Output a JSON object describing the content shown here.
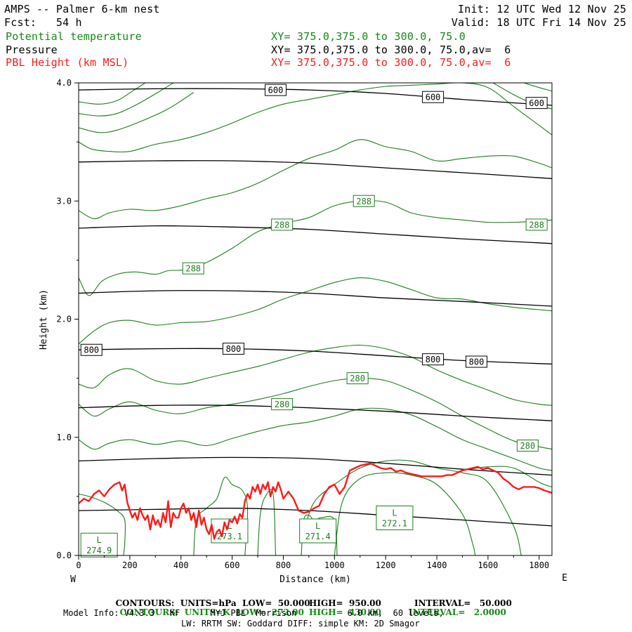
{
  "header": {
    "title": "AMPS -- Palmer 6-km nest",
    "forecast": "Fcst:   54 h",
    "init": "Init: 12 UTC Wed 12 Nov 25",
    "valid": "Valid: 18 UTC Fri 14 Nov 25",
    "fields": [
      {
        "label": "Potential temperature",
        "xsec": "XY= 375.0,375.0 to 300.0, 75.0",
        "color": "#138a13"
      },
      {
        "label": "Pressure",
        "xsec": "XY= 375.0,375.0 to 300.0, 75.0,av=  6",
        "color": "#000000"
      },
      {
        "label": "PBL Height (km MSL)",
        "xsec": "XY= 375.0,375.0 to 300.0, 75.0,av=  6",
        "color": "#ff1a1a"
      }
    ]
  },
  "chart_data": {
    "type": "line",
    "xlabel": "Distance (km)",
    "ylabel": "Height (km)",
    "xlim": [
      0,
      1850
    ],
    "ylim": [
      0,
      4
    ],
    "x_ticks": [
      0,
      200,
      400,
      600,
      800,
      1000,
      1200,
      1400,
      1600,
      1800
    ],
    "y_ticks": [
      0.0,
      1.0,
      2.0,
      3.0,
      4.0
    ],
    "y_tick_labels": [
      "0.0",
      "1.0",
      "2.0",
      "3.0",
      "4.0"
    ],
    "left_end_label": "W",
    "right_end_label": "E",
    "colors": {
      "pressure": "#000000",
      "theta": "#1e7d1e",
      "pbl": "#ff1a1a"
    },
    "pressure_contours": [
      {
        "x": [
          0,
          300,
          600,
          900,
          1200,
          1500,
          1850
        ],
        "y": [
          0.38,
          0.39,
          0.4,
          0.38,
          0.34,
          0.3,
          0.25
        ]
      },
      {
        "x": [
          0,
          300,
          600,
          900,
          1200,
          1500,
          1850
        ],
        "y": [
          0.8,
          0.82,
          0.83,
          0.82,
          0.78,
          0.73,
          0.68
        ]
      },
      {
        "x": [
          0,
          300,
          600,
          900,
          1200,
          1500,
          1850
        ],
        "y": [
          1.25,
          1.27,
          1.27,
          1.25,
          1.22,
          1.18,
          1.14
        ]
      },
      {
        "x": [
          0,
          300,
          600,
          900,
          1200,
          1500,
          1850
        ],
        "y": [
          1.74,
          1.75,
          1.75,
          1.73,
          1.69,
          1.65,
          1.62
        ]
      },
      {
        "x": [
          0,
          300,
          600,
          900,
          1200,
          1500,
          1850
        ],
        "y": [
          2.22,
          2.24,
          2.24,
          2.22,
          2.18,
          2.15,
          2.11
        ]
      },
      {
        "x": [
          0,
          300,
          600,
          900,
          1200,
          1500,
          1850
        ],
        "y": [
          2.77,
          2.79,
          2.78,
          2.76,
          2.72,
          2.68,
          2.64
        ]
      },
      {
        "x": [
          0,
          300,
          600,
          900,
          1200,
          1500,
          1850
        ],
        "y": [
          3.33,
          3.34,
          3.34,
          3.32,
          3.28,
          3.24,
          3.19
        ]
      },
      {
        "x": [
          0,
          300,
          600,
          900,
          1200,
          1500,
          1850
        ],
        "y": [
          3.94,
          3.95,
          3.95,
          3.94,
          3.91,
          3.86,
          3.81
        ]
      }
    ],
    "pressure_labels": [
      {
        "x": 770,
        "y": 3.94,
        "text": "600"
      },
      {
        "x": 1385,
        "y": 3.88,
        "text": "600"
      },
      {
        "x": 1790,
        "y": 3.83,
        "text": "600"
      },
      {
        "x": 50,
        "y": 1.74,
        "text": "800"
      },
      {
        "x": 605,
        "y": 1.75,
        "text": "800"
      },
      {
        "x": 1385,
        "y": 1.66,
        "text": "800"
      },
      {
        "x": 1555,
        "y": 1.64,
        "text": "800"
      }
    ],
    "theta_contours": [
      {
        "x": [
          0,
          60,
          120,
          200,
          300,
          400,
          500,
          600,
          700,
          800,
          900,
          1000,
          1100,
          1200,
          1300,
          1400,
          1500,
          1600,
          1700,
          1800,
          1850
        ],
        "y": [
          0.98,
          0.9,
          0.95,
          0.98,
          0.94,
          0.97,
          0.93,
          0.99,
          1.05,
          1.1,
          1.13,
          1.18,
          1.24,
          1.24,
          1.19,
          1.09,
          0.98,
          0.9,
          0.82,
          0.74,
          0.72
        ]
      },
      {
        "x": [
          0,
          60,
          120,
          200,
          300,
          400,
          500,
          600,
          700,
          800,
          900,
          1000,
          1100,
          1200,
          1300,
          1400,
          1500,
          1600,
          1700,
          1800,
          1850
        ],
        "y": [
          1.28,
          1.18,
          1.24,
          1.3,
          1.23,
          1.2,
          1.25,
          1.28,
          1.32,
          1.37,
          1.43,
          1.48,
          1.5,
          1.48,
          1.4,
          1.3,
          1.18,
          1.07,
          0.97,
          0.92,
          0.9
        ]
      },
      {
        "x": [
          0,
          60,
          120,
          200,
          300,
          400,
          500,
          600,
          700,
          800,
          900,
          1000,
          1100,
          1200,
          1300,
          1400,
          1500,
          1600,
          1700,
          1800,
          1850
        ],
        "y": [
          1.45,
          1.42,
          1.53,
          1.58,
          1.48,
          1.45,
          1.5,
          1.55,
          1.6,
          1.66,
          1.72,
          1.76,
          1.78,
          1.75,
          1.68,
          1.57,
          1.48,
          1.4,
          1.32,
          1.28,
          1.27
        ]
      },
      {
        "x": [
          0,
          60,
          120,
          200,
          300,
          400,
          500,
          600,
          700,
          800,
          900,
          1000,
          1100,
          1200,
          1300,
          1400,
          1500,
          1600,
          1700,
          1800,
          1850
        ],
        "y": [
          1.79,
          1.9,
          1.97,
          1.99,
          1.95,
          1.97,
          1.98,
          2.02,
          2.08,
          2.17,
          2.24,
          2.31,
          2.35,
          2.32,
          2.25,
          2.18,
          2.17,
          2.13,
          2.1,
          2.08,
          2.07
        ]
      },
      {
        "x": [
          0,
          40,
          90,
          150,
          220,
          300,
          350,
          420,
          500,
          600,
          700,
          800,
          900,
          1000,
          1100,
          1200,
          1300,
          1400,
          1500,
          1600,
          1700,
          1800,
          1850
        ],
        "y": [
          2.35,
          2.2,
          2.32,
          2.38,
          2.4,
          2.38,
          2.41,
          2.42,
          2.48,
          2.6,
          2.74,
          2.81,
          2.86,
          2.96,
          3.0,
          2.99,
          2.9,
          2.86,
          2.84,
          2.82,
          2.82,
          2.83,
          2.84
        ]
      },
      {
        "x": [
          0,
          60,
          120,
          200,
          300,
          400,
          500,
          600,
          700,
          800,
          900,
          1000,
          1100,
          1200,
          1300,
          1400,
          1500,
          1600,
          1700,
          1800,
          1850
        ],
        "y": [
          2.92,
          2.85,
          2.9,
          2.93,
          2.92,
          2.96,
          3.02,
          3.07,
          3.15,
          3.26,
          3.36,
          3.43,
          3.52,
          3.46,
          3.42,
          3.34,
          3.36,
          3.38,
          3.38,
          3.32,
          3.28
        ]
      },
      {
        "x": [
          0,
          50,
          120,
          200,
          300,
          400,
          500,
          600,
          700,
          800,
          900,
          1000,
          1100,
          1200,
          1300,
          1400,
          1500,
          1600,
          1700,
          1750,
          1850
        ],
        "y": [
          3.5,
          3.44,
          3.42,
          3.42,
          3.48,
          3.52,
          3.58,
          3.66,
          3.75,
          3.82,
          3.86,
          3.9,
          3.94,
          3.97,
          3.98,
          3.99,
          4.0,
          3.96,
          3.8,
          3.72,
          3.56
        ]
      },
      {
        "x": [
          0,
          80,
          150,
          250,
          350,
          450
        ],
        "y": [
          3.62,
          3.58,
          3.6,
          3.68,
          3.78,
          3.92
        ]
      },
      {
        "x": [
          0,
          80,
          150,
          230,
          310,
          370
        ],
        "y": [
          3.74,
          3.72,
          3.74,
          3.82,
          3.92,
          4.0
        ]
      },
      {
        "x": [
          0,
          80,
          150,
          210,
          260
        ],
        "y": [
          3.84,
          3.82,
          3.85,
          3.93,
          4.0
        ]
      },
      {
        "x": [
          1620,
          1700,
          1780,
          1850
        ],
        "y": [
          4.0,
          3.9,
          3.82,
          3.78
        ]
      },
      {
        "x": [
          1740,
          1800,
          1850
        ],
        "y": [
          4.0,
          3.96,
          3.93
        ]
      }
    ],
    "theta_low_contours": [
      {
        "x": [
          0,
          40,
          100,
          150,
          180,
          180,
          175
        ],
        "y": [
          0.52,
          0.5,
          0.45,
          0.38,
          0.3,
          0.1,
          0.0
        ]
      },
      {
        "x": [
          450,
          460,
          500,
          540,
          570,
          600,
          640,
          660,
          650
        ],
        "y": [
          0.0,
          0.3,
          0.4,
          0.48,
          0.66,
          0.6,
          0.55,
          0.4,
          0.0
        ]
      },
      {
        "x": [
          700,
          710,
          730,
          760,
          770
        ],
        "y": [
          0.0,
          0.35,
          0.5,
          0.52,
          0.0
        ]
      },
      {
        "x": [
          870,
          880,
          900,
          920,
          950,
          1000,
          1010
        ],
        "y": [
          0.0,
          0.3,
          0.34,
          0.3,
          0.32,
          0.3,
          0.0
        ]
      },
      {
        "x": [
          1000,
          1030,
          1100,
          1200,
          1300,
          1400,
          1500,
          1540,
          1550
        ],
        "y": [
          0.0,
          0.45,
          0.65,
          0.7,
          0.68,
          0.6,
          0.35,
          0.1,
          0.0
        ]
      },
      {
        "x": [
          880,
          920,
          1000,
          1100,
          1200,
          1300,
          1400,
          1500,
          1600,
          1700,
          1730
        ],
        "y": [
          0.2,
          0.45,
          0.6,
          0.74,
          0.8,
          0.8,
          0.74,
          0.7,
          0.62,
          0.25,
          0.0
        ]
      },
      {
        "x": [
          1500,
          1600,
          1700,
          1800,
          1850
        ],
        "y": [
          0.72,
          0.75,
          0.74,
          0.62,
          0.58
        ]
      }
    ],
    "theta_labels": [
      {
        "x": 448,
        "y": 2.43,
        "text": "288"
      },
      {
        "x": 795,
        "y": 2.8,
        "text": "288"
      },
      {
        "x": 1115,
        "y": 3.0,
        "text": "288"
      },
      {
        "x": 1790,
        "y": 2.8,
        "text": "288"
      },
      {
        "x": 795,
        "y": 1.28,
        "text": "280"
      },
      {
        "x": 1090,
        "y": 1.5,
        "text": "280"
      },
      {
        "x": 1755,
        "y": 0.93,
        "text": "280"
      }
    ],
    "lows": [
      {
        "x": 80,
        "y": 0.07,
        "letter": "L",
        "value": "274.9"
      },
      {
        "x": 590,
        "y": 0.19,
        "letter": "L",
        "value": "273.1"
      },
      {
        "x": 935,
        "y": 0.19,
        "letter": "L",
        "value": "271.4"
      },
      {
        "x": 1235,
        "y": 0.3,
        "letter": "L",
        "value": "272.1"
      }
    ],
    "pbl_height": {
      "x": [
        0,
        20,
        40,
        60,
        80,
        100,
        120,
        140,
        160,
        170,
        180,
        190,
        200,
        210,
        220,
        230,
        240,
        250,
        260,
        270,
        280,
        290,
        300,
        310,
        320,
        330,
        340,
        350,
        360,
        370,
        380,
        390,
        400,
        410,
        420,
        430,
        440,
        450,
        460,
        470,
        480,
        490,
        500,
        510,
        520,
        530,
        540,
        550,
        560,
        570,
        580,
        590,
        600,
        610,
        620,
        630,
        640,
        650,
        660,
        670,
        680,
        690,
        700,
        710,
        720,
        730,
        740,
        750,
        760,
        770,
        780,
        790,
        800,
        820,
        840,
        860,
        880,
        900,
        920,
        940,
        960,
        980,
        1000,
        1020,
        1040,
        1060,
        1080,
        1100,
        1120,
        1140,
        1160,
        1180,
        1200,
        1220,
        1240,
        1260,
        1280,
        1300,
        1320,
        1340,
        1360,
        1380,
        1400,
        1420,
        1440,
        1460,
        1480,
        1500,
        1520,
        1540,
        1560,
        1580,
        1600,
        1620,
        1640,
        1660,
        1680,
        1700,
        1720,
        1740,
        1760,
        1780,
        1800,
        1820,
        1850
      ],
      "y": [
        0.44,
        0.48,
        0.46,
        0.52,
        0.55,
        0.5,
        0.56,
        0.6,
        0.62,
        0.55,
        0.6,
        0.45,
        0.38,
        0.32,
        0.36,
        0.3,
        0.4,
        0.34,
        0.3,
        0.34,
        0.22,
        0.34,
        0.26,
        0.3,
        0.24,
        0.36,
        0.28,
        0.46,
        0.24,
        0.36,
        0.32,
        0.32,
        0.4,
        0.44,
        0.36,
        0.4,
        0.3,
        0.36,
        0.24,
        0.38,
        0.26,
        0.32,
        0.22,
        0.18,
        0.26,
        0.14,
        0.2,
        0.22,
        0.16,
        0.28,
        0.22,
        0.3,
        0.28,
        0.33,
        0.27,
        0.35,
        0.32,
        0.46,
        0.52,
        0.48,
        0.58,
        0.54,
        0.6,
        0.52,
        0.6,
        0.56,
        0.62,
        0.5,
        0.58,
        0.54,
        0.62,
        0.56,
        0.48,
        0.54,
        0.48,
        0.38,
        0.36,
        0.37,
        0.4,
        0.42,
        0.52,
        0.58,
        0.6,
        0.52,
        0.58,
        0.72,
        0.74,
        0.76,
        0.77,
        0.78,
        0.76,
        0.74,
        0.73,
        0.74,
        0.71,
        0.72,
        0.7,
        0.69,
        0.68,
        0.67,
        0.67,
        0.67,
        0.67,
        0.67,
        0.68,
        0.68,
        0.7,
        0.72,
        0.73,
        0.74,
        0.75,
        0.73,
        0.74,
        0.72,
        0.7,
        0.65,
        0.62,
        0.58,
        0.56,
        0.58,
        0.58,
        0.58,
        0.57,
        0.55,
        0.53
      ]
    }
  },
  "footer": {
    "line1_parts": [
      "CONTOURS:  UNITS=hPa  LOW=  50.000",
      "HIGH=  950.00",
      "INTERVAL=   50.000"
    ],
    "line2_parts": [
      "CONTOURS:  UNITS=K  LOW=  272.00",
      "HIGH=  430.00",
      "INTERVAL=   2.0000"
    ],
    "line3": "Model Info: V4.3.3   KF      MYJ PBL  Morrison          6.0 km,  60 levels,",
    "line4": "LW: RRTM SW: Goddard DIFF: simple KM: 2D Smagor"
  }
}
